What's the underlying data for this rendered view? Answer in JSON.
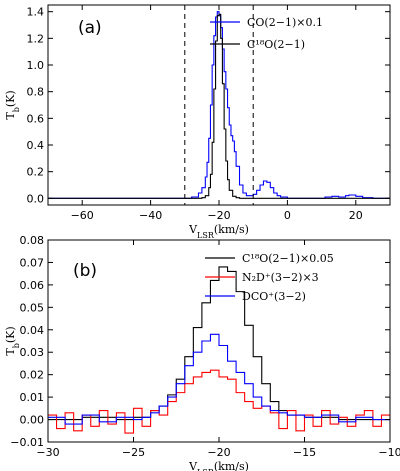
{
  "chart_data": [
    {
      "type": "line",
      "panel_label": "(a)",
      "xlabel": "V_LSR(km/s)",
      "ylabel": "T_b(K)",
      "xlim": [
        -70,
        30
      ],
      "ylim": [
        -0.05,
        1.45
      ],
      "xticks": [
        -60,
        -40,
        -20,
        0,
        20
      ],
      "yticks": [
        0.0,
        0.2,
        0.4,
        0.6,
        0.8,
        1.0,
        1.2,
        1.4
      ],
      "vlines": [
        -30,
        -10
      ],
      "legend_position": "top-right",
      "series": [
        {
          "name": "CO(2−1)×0.1",
          "color": "#0000ff",
          "x": [
            -70,
            -30,
            -28,
            -26,
            -25,
            -24,
            -23.5,
            -23,
            -22.5,
            -22,
            -21.5,
            -21,
            -20.5,
            -20,
            -19.5,
            -19,
            -18.5,
            -18,
            -17.5,
            -17,
            -16.5,
            -16,
            -15.5,
            -15,
            -14,
            -13,
            -12,
            -11,
            -10,
            -9,
            -8,
            -7,
            -6,
            -5,
            -4,
            -3,
            -2,
            0,
            5,
            10,
            11,
            13,
            15,
            17,
            18,
            20,
            22,
            25,
            30
          ],
          "y": [
            0,
            0,
            0.01,
            0.04,
            0.08,
            0.16,
            0.27,
            0.45,
            0.7,
            1.0,
            1.22,
            1.36,
            1.4,
            1.37,
            1.28,
            1.12,
            0.95,
            0.82,
            0.68,
            0.55,
            0.47,
            0.43,
            0.35,
            0.24,
            0.1,
            0.04,
            0.02,
            0.02,
            0.03,
            0.06,
            0.1,
            0.13,
            0.12,
            0.08,
            0.04,
            0.02,
            0.01,
            0,
            0,
            0,
            0.01,
            0.015,
            0.01,
            0.02,
            0.025,
            0.015,
            0.005,
            0,
            0
          ]
        },
        {
          "name": "C¹⁸O(2−1)",
          "color": "#000000",
          "x": [
            -70,
            -26,
            -25,
            -24,
            -23,
            -22.5,
            -22,
            -21.5,
            -21,
            -20.5,
            -20,
            -19.5,
            -19,
            -18.5,
            -18,
            -17.5,
            -17,
            -16,
            -15,
            -14,
            30
          ],
          "y": [
            0,
            0,
            0.005,
            0.02,
            0.08,
            0.18,
            0.42,
            0.82,
            1.18,
            1.37,
            1.38,
            1.2,
            0.86,
            0.52,
            0.28,
            0.14,
            0.06,
            0.015,
            0.005,
            0,
            0
          ]
        }
      ]
    },
    {
      "type": "line",
      "panel_label": "(b)",
      "xlabel": "V_LSR(km/s)",
      "ylabel": "T_b(K)",
      "xlim": [
        -30,
        -10
      ],
      "ylim": [
        -0.01,
        0.08
      ],
      "xticks": [
        -30,
        -25,
        -20,
        -15,
        -10
      ],
      "yticks": [
        -0.01,
        0.0,
        0.01,
        0.02,
        0.03,
        0.04,
        0.05,
        0.06,
        0.07,
        0.08
      ],
      "legend_position": "top-right",
      "series": [
        {
          "name": "C¹⁸O(2−1)×0.05",
          "color": "#000000",
          "x": [
            -30,
            -28,
            -26,
            -25,
            -24,
            -23.5,
            -23,
            -22.5,
            -22,
            -21.5,
            -21,
            -20.5,
            -20,
            -19.5,
            -19,
            -18.5,
            -18,
            -17.5,
            -17,
            -16.5,
            -16,
            -15,
            -13,
            -10
          ],
          "y": [
            0,
            0.001,
            0,
            0.001,
            0.004,
            0.006,
            0.011,
            0.018,
            0.028,
            0.041,
            0.052,
            0.062,
            0.068,
            0.066,
            0.057,
            0.042,
            0.028,
            0.016,
            0.008,
            0.004,
            0.002,
            0.001,
            0,
            0
          ]
        },
        {
          "name": "N₂D⁺(3−2)×3",
          "color": "#ff0000",
          "x": [
            -30,
            -29.5,
            -29,
            -28.5,
            -28,
            -27.5,
            -27,
            -26.5,
            -26,
            -25.5,
            -25,
            -24.5,
            -24,
            -23.5,
            -23,
            -22.5,
            -22,
            -21.5,
            -21,
            -20.5,
            -20,
            -19.5,
            -19,
            -18.5,
            -18,
            -17.5,
            -17,
            -16.5,
            -16,
            -15.5,
            -15,
            -14.5,
            -14,
            -13.5,
            -13,
            -12.5,
            -12,
            -11.5,
            -11,
            -10.5,
            -10
          ],
          "y": [
            0.002,
            -0.004,
            0.003,
            -0.005,
            0.002,
            -0.003,
            0.004,
            -0.002,
            0.003,
            -0.006,
            0.005,
            -0.003,
            0.004,
            0.002,
            0.008,
            0.012,
            0.016,
            0.019,
            0.021,
            0.022,
            0.019,
            0.018,
            0.012,
            0.008,
            0.005,
            0.006,
            0.003,
            -0.004,
            0.004,
            -0.005,
            0.002,
            -0.003,
            0.004,
            -0.002,
            0.001,
            -0.003,
            0.002,
            0.004,
            -0.003,
            0.002,
            0
          ]
        },
        {
          "name": "DCO⁺(3−2)",
          "color": "#0000ff",
          "x": [
            -30,
            -29,
            -28,
            -27,
            -26,
            -25,
            -24.5,
            -24,
            -23.5,
            -23,
            -22.5,
            -22,
            -21.5,
            -21,
            -20.5,
            -20,
            -19.5,
            -19,
            -18.5,
            -18,
            -17.5,
            -17,
            -16.5,
            -16,
            -15,
            -14,
            -13,
            -12,
            -11,
            -10
          ],
          "y": [
            0.001,
            -0.002,
            0.002,
            -0.001,
            0.001,
            0,
            0.001,
            0.003,
            0.006,
            0.01,
            0.016,
            0.024,
            0.03,
            0.035,
            0.038,
            0.033,
            0.026,
            0.021,
            0.016,
            0.01,
            0.006,
            0.004,
            0.003,
            0.002,
            0.001,
            0.002,
            -0.001,
            0.001,
            0,
            0.001
          ]
        }
      ]
    }
  ]
}
